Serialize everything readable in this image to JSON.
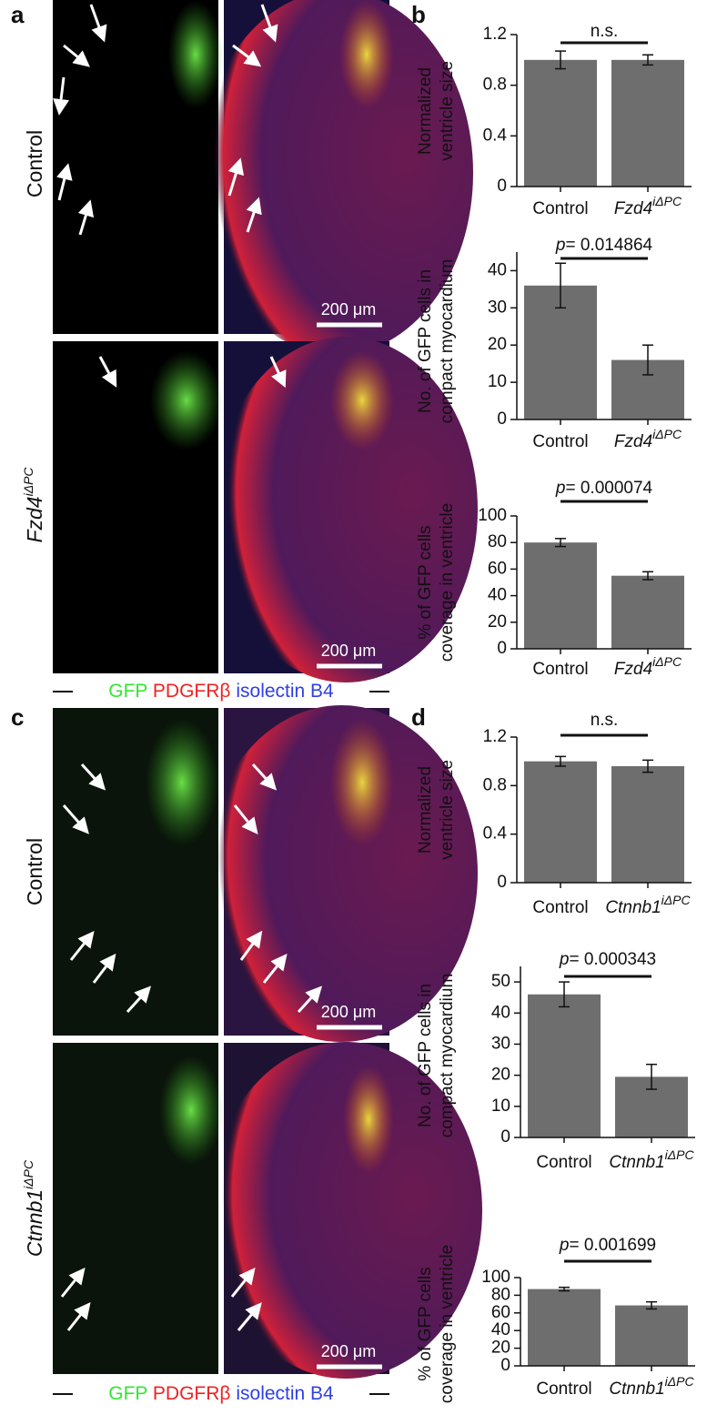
{
  "panel_labels": [
    "a",
    "b",
    "c",
    "d"
  ],
  "image_rows": [
    {
      "label": "Control"
    },
    {
      "label": "Fzd4",
      "superscript": "iΔPC"
    },
    {
      "label": "Control"
    },
    {
      "label": "Ctnnb1",
      "superscript": "iΔPC"
    }
  ],
  "scale_bar": "200 μm",
  "stain_legend": [
    {
      "text": "GFP",
      "color": "#33e633"
    },
    {
      "text": "PDGFRβ",
      "color": "#ee2222"
    },
    {
      "text": "isolectin B4",
      "color": "#2f3fe8"
    }
  ],
  "chart_data": [
    {
      "type": "bar",
      "ylabel": [
        "Normalized",
        "ventricle size"
      ],
      "categories": [
        "Control",
        "Fzd4"
      ],
      "category_superscripts": [
        null,
        "iΔPC"
      ],
      "values": [
        1.0,
        1.0
      ],
      "errors": [
        0.07,
        0.04
      ],
      "color": "#6e6e6e",
      "ylim": [
        0,
        1.2
      ],
      "yticks": [
        0,
        0.4,
        0.8,
        1.2
      ],
      "annotation": "n.s."
    },
    {
      "type": "bar",
      "ylabel": [
        "No. of GFP cells in",
        "compact myocardium"
      ],
      "categories": [
        "Control",
        "Fzd4"
      ],
      "category_superscripts": [
        null,
        "iΔPC"
      ],
      "values": [
        36,
        16
      ],
      "errors": [
        6,
        4
      ],
      "color": "#6e6e6e",
      "ylim": [
        0,
        45
      ],
      "yticks": [
        0,
        10,
        20,
        30,
        40
      ],
      "annotation_symbol": "p",
      "annotation": "= 0.014864"
    },
    {
      "type": "bar",
      "ylabel": [
        "% of GFP cells",
        "coverage in ventricle"
      ],
      "categories": [
        "Control",
        "Fzd4"
      ],
      "category_superscripts": [
        null,
        "iΔPC"
      ],
      "values": [
        80,
        55
      ],
      "errors": [
        3,
        3
      ],
      "color": "#6e6e6e",
      "ylim": [
        0,
        100
      ],
      "yticks": [
        0,
        20,
        40,
        60,
        80,
        100
      ],
      "annotation_symbol": "p",
      "annotation": "= 0.000074"
    },
    {
      "type": "bar",
      "ylabel": [
        "Normalized",
        "ventricle size"
      ],
      "categories": [
        "Control",
        "Ctnnb1"
      ],
      "category_superscripts": [
        null,
        "iΔPC"
      ],
      "values": [
        1.0,
        0.96
      ],
      "errors": [
        0.04,
        0.05
      ],
      "color": "#6e6e6e",
      "ylim": [
        0,
        1.2
      ],
      "yticks": [
        0,
        0.4,
        0.8,
        1.2
      ],
      "annotation": "n.s."
    },
    {
      "type": "bar",
      "ylabel": [
        "No. of GFP cells in",
        "compact myocardium"
      ],
      "categories": [
        "Control",
        "Ctnnb1"
      ],
      "category_superscripts": [
        null,
        "iΔPC"
      ],
      "values": [
        46,
        19.5
      ],
      "errors": [
        4,
        4
      ],
      "color": "#6e6e6e",
      "ylim": [
        0,
        55
      ],
      "yticks": [
        0,
        10,
        20,
        30,
        40,
        50
      ],
      "annotation_symbol": "p",
      "annotation": "= 0.000343"
    },
    {
      "type": "bar",
      "ylabel": [
        "% of GFP cells",
        "coverage in ventricle"
      ],
      "categories": [
        "Control",
        "Ctnnb1"
      ],
      "category_superscripts": [
        null,
        "iΔPC"
      ],
      "values": [
        87,
        68.5
      ],
      "errors": [
        2,
        4
      ],
      "color": "#6e6e6e",
      "ylim": [
        0,
        100
      ],
      "yticks": [
        0,
        20,
        40,
        60,
        80,
        100
      ],
      "annotation_symbol": "p",
      "annotation": "= 0.001699"
    }
  ]
}
